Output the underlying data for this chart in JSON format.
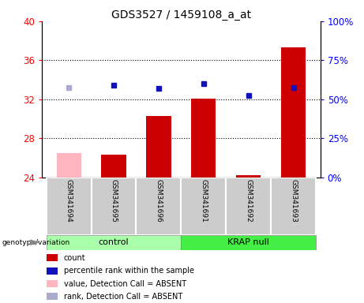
{
  "title": "GDS3527 / 1459108_a_at",
  "samples": [
    "GSM341694",
    "GSM341695",
    "GSM341696",
    "GSM341691",
    "GSM341692",
    "GSM341693"
  ],
  "groups": [
    "control",
    "control",
    "control",
    "KRAP null",
    "KRAP null",
    "KRAP null"
  ],
  "bar_values": [
    26.5,
    26.3,
    30.3,
    32.1,
    24.2,
    37.3
  ],
  "bar_colors": [
    "#FFB6C1",
    "#CC0000",
    "#CC0000",
    "#CC0000",
    "#CC0000",
    "#CC0000"
  ],
  "dot_values": [
    33.2,
    33.4,
    33.1,
    33.6,
    32.4,
    33.2
  ],
  "dot_colors": [
    "#AAAACC",
    "#1111BB",
    "#1111BB",
    "#1111BB",
    "#1111BB",
    "#1111BB"
  ],
  "ymin": 24,
  "ymax": 40,
  "yticks": [
    24,
    28,
    32,
    36,
    40
  ],
  "yright_ticks": [
    0,
    25,
    50,
    75,
    100
  ],
  "group_labels": [
    "control",
    "KRAP null"
  ],
  "group_colors": [
    "#AAFFAA",
    "#44EE44"
  ],
  "legend_labels": [
    "count",
    "percentile rank within the sample",
    "value, Detection Call = ABSENT",
    "rank, Detection Call = ABSENT"
  ],
  "legend_colors": [
    "#CC0000",
    "#1111BB",
    "#FFB6C1",
    "#AAAACC"
  ],
  "xlabel_genotype": "genotype/variation",
  "bar_width": 0.55,
  "baseline": 24,
  "dot_gridlines": [
    28,
    32,
    36
  ]
}
